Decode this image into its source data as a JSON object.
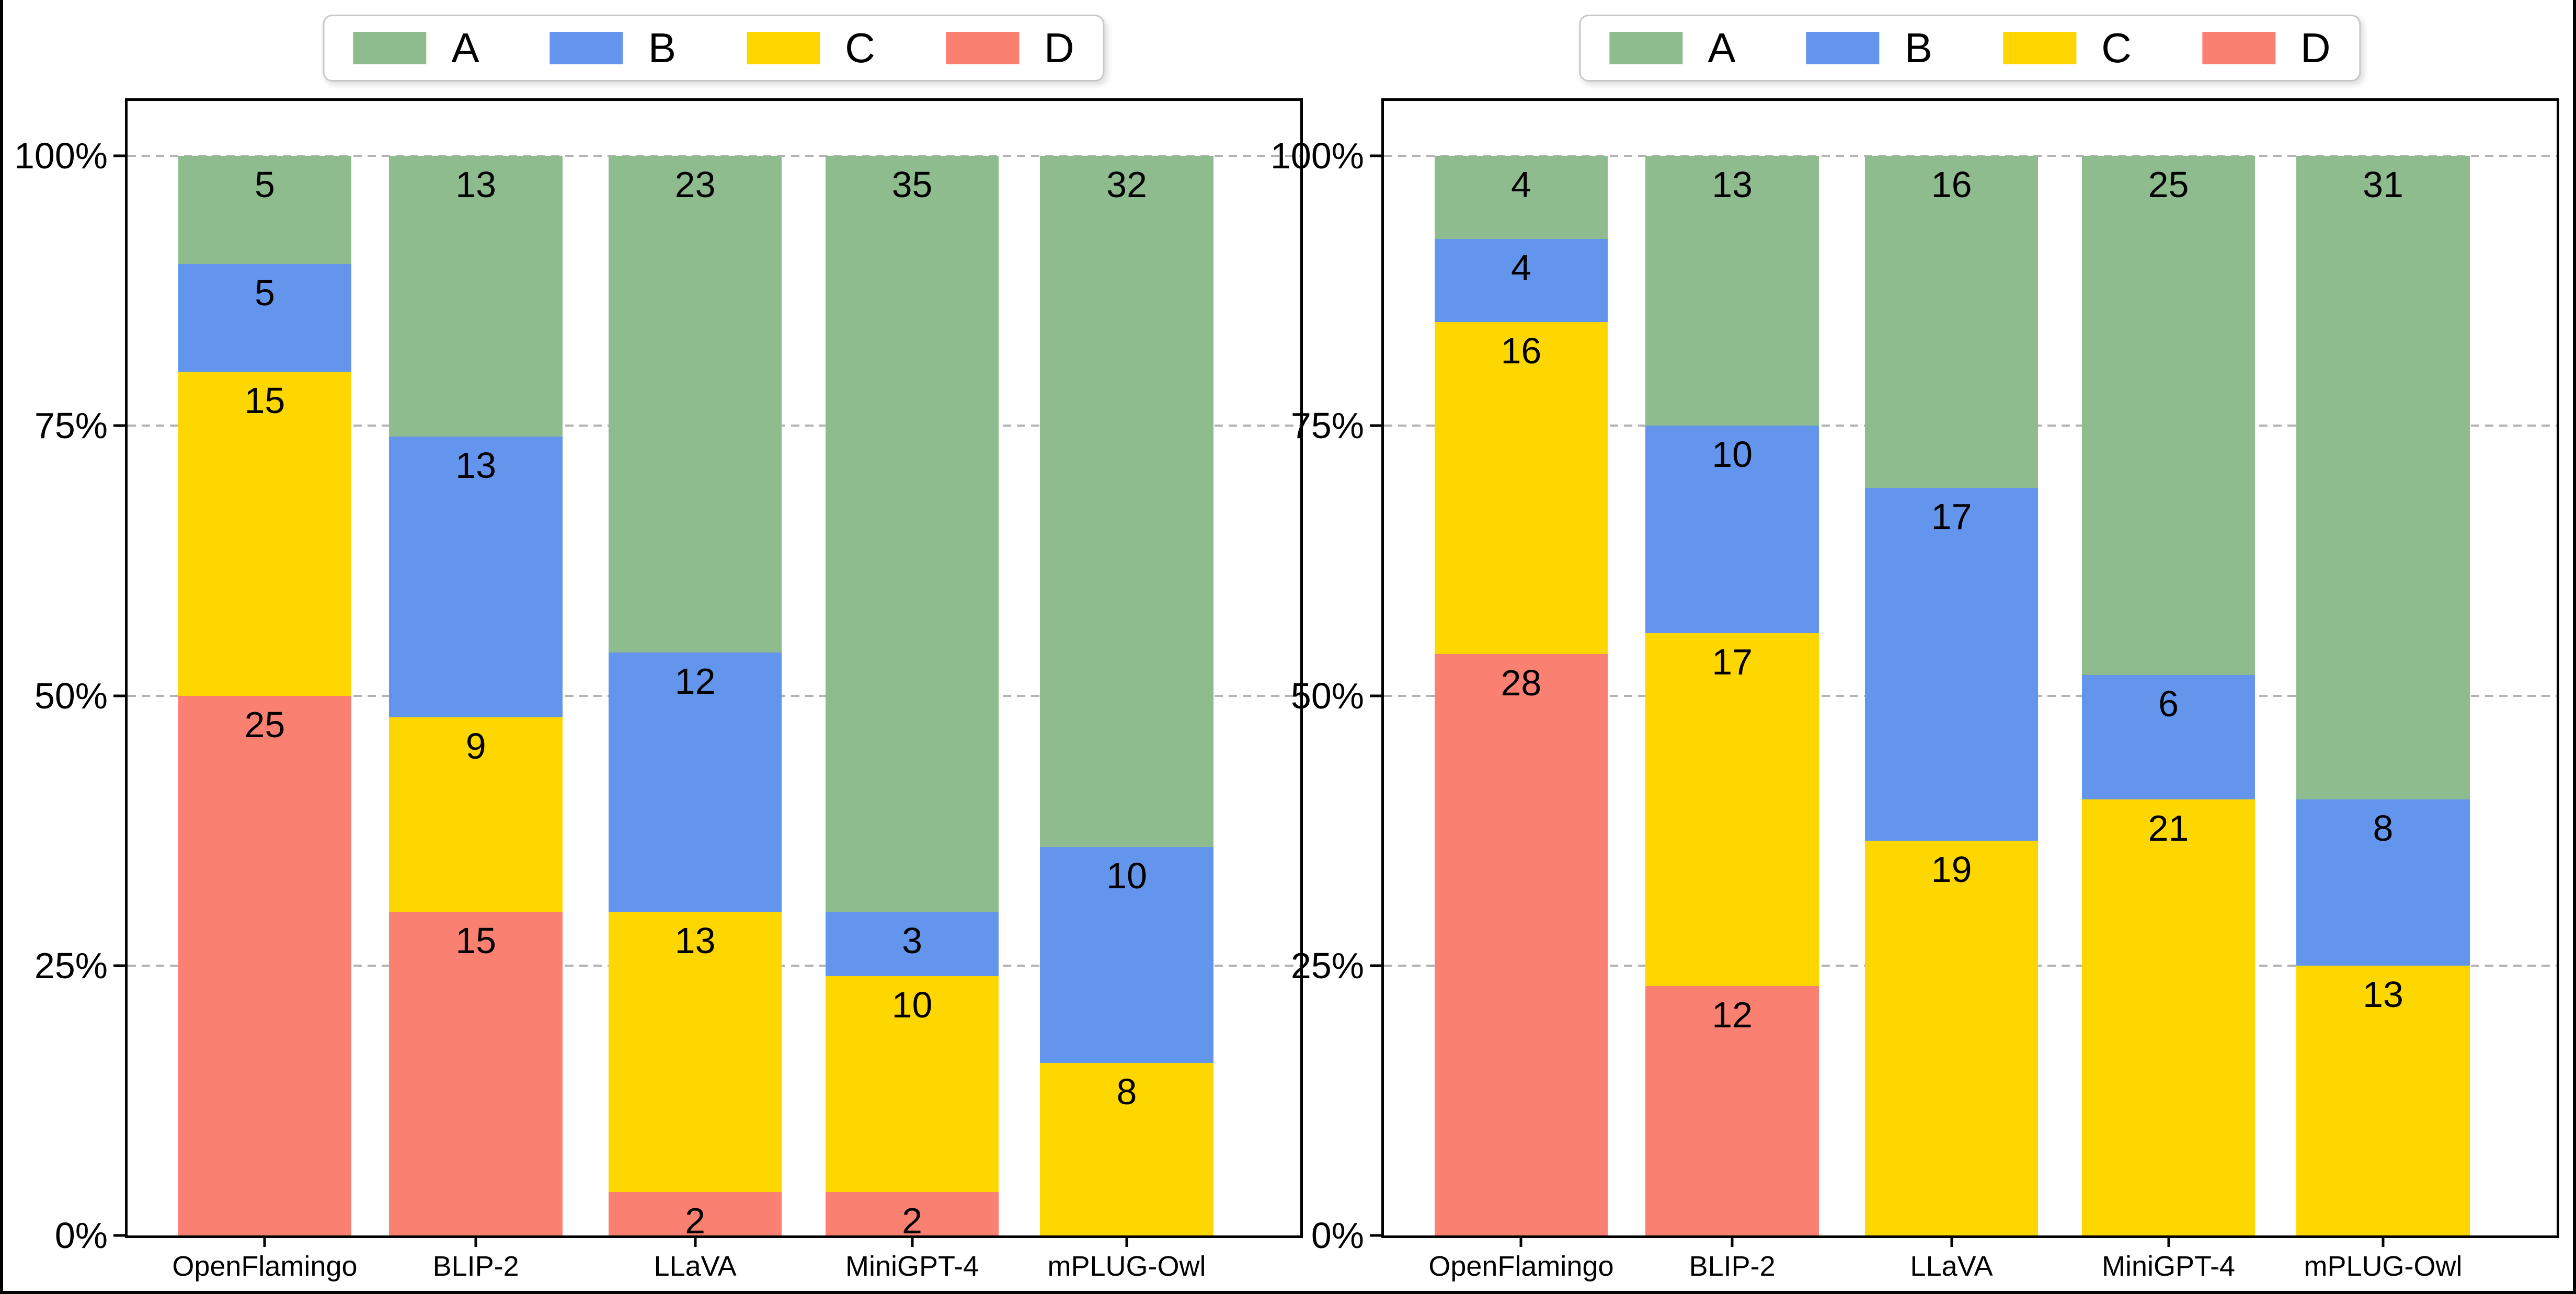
{
  "legend": {
    "items": [
      {
        "label": "A",
        "color": "#8fbc8f"
      },
      {
        "label": "B",
        "color": "#6495ed"
      },
      {
        "label": "C",
        "color": "#ffd700"
      },
      {
        "label": "D",
        "color": "#fa8072"
      }
    ]
  },
  "y_axis": {
    "ticks": [
      "0%",
      "25%",
      "50%",
      "75%",
      "100%"
    ]
  },
  "chart_data": [
    {
      "type": "bar",
      "stacked": true,
      "normalized": "percent",
      "title": "",
      "categories": [
        "OpenFlamingo",
        "BLIP-2",
        "LLaVA",
        "MiniGPT-4",
        "mPLUG-Owl"
      ],
      "series": [
        {
          "name": "A",
          "color": "#8fbc8f",
          "values": [
            5,
            13,
            23,
            35,
            32
          ]
        },
        {
          "name": "B",
          "color": "#6495ed",
          "values": [
            5,
            13,
            12,
            3,
            10
          ]
        },
        {
          "name": "C",
          "color": "#ffd700",
          "values": [
            15,
            9,
            13,
            10,
            8
          ]
        },
        {
          "name": "D",
          "color": "#fa8072",
          "values": [
            25,
            15,
            2,
            2,
            0
          ]
        }
      ],
      "stack_order_bottom_to_top": [
        "D",
        "C",
        "B",
        "A"
      ],
      "total_per_bar": 50,
      "y_tick_labels": [
        "0%",
        "25%",
        "50%",
        "75%",
        "100%"
      ],
      "ylim": [
        0,
        100
      ],
      "grid": "dashed-horizontal",
      "legend_position": "top-center"
    },
    {
      "type": "bar",
      "stacked": true,
      "normalized": "percent",
      "title": "",
      "categories": [
        "OpenFlamingo",
        "BLIP-2",
        "LLaVA",
        "MiniGPT-4",
        "mPLUG-Owl"
      ],
      "series": [
        {
          "name": "A",
          "color": "#8fbc8f",
          "values": [
            4,
            13,
            16,
            25,
            31
          ]
        },
        {
          "name": "B",
          "color": "#6495ed",
          "values": [
            4,
            10,
            17,
            6,
            8
          ]
        },
        {
          "name": "C",
          "color": "#ffd700",
          "values": [
            16,
            17,
            19,
            21,
            13
          ]
        },
        {
          "name": "D",
          "color": "#fa8072",
          "values": [
            28,
            12,
            0,
            0,
            0
          ]
        }
      ],
      "stack_order_bottom_to_top": [
        "D",
        "C",
        "B",
        "A"
      ],
      "total_per_bar": 52,
      "y_tick_labels": [
        "0%",
        "25%",
        "50%",
        "75%",
        "100%"
      ],
      "ylim": [
        0,
        100
      ],
      "grid": "dashed-horizontal",
      "legend_position": "top-center"
    }
  ]
}
